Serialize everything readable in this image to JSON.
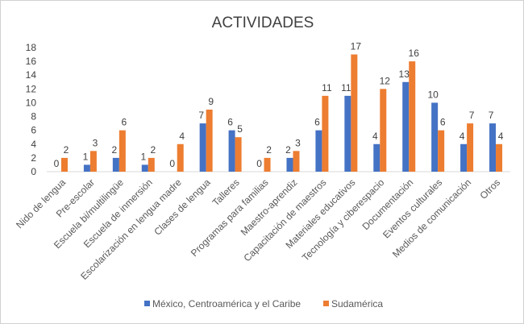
{
  "chart_data": {
    "type": "bar",
    "title": "ACTIVIDADES",
    "xlabel": "",
    "ylabel": "",
    "ylim": [
      0,
      18
    ],
    "yticks": [
      0,
      2,
      4,
      6,
      8,
      10,
      12,
      14,
      16,
      18
    ],
    "grid": false,
    "legend_position": "bottom",
    "categories": [
      "Nido de lengua",
      "Pre-escolar",
      "Escuela bi/multilingüe",
      "Escuela de inmersión",
      "Escolarización en lengua madre",
      "Clases de lengua",
      "Talleres",
      "Programas para familias",
      "Maestro-aprendiz",
      "Capacitación de maestros",
      "Materiales educativos",
      "Tecnología y ciberespacio",
      "Documentación",
      "Eventos culturales",
      "Medios de comunicación",
      "Otros"
    ],
    "series": [
      {
        "name": "México, Centroamérica y el Caribe",
        "color": "#4472c4",
        "values": [
          0,
          1,
          2,
          1,
          0,
          7,
          6,
          0,
          2,
          6,
          11,
          4,
          13,
          10,
          4,
          7
        ]
      },
      {
        "name": "Sudamérica",
        "color": "#ed7d31",
        "values": [
          2,
          3,
          6,
          2,
          4,
          9,
          5,
          2,
          3,
          11,
          17,
          12,
          16,
          6,
          7,
          4
        ]
      }
    ]
  }
}
